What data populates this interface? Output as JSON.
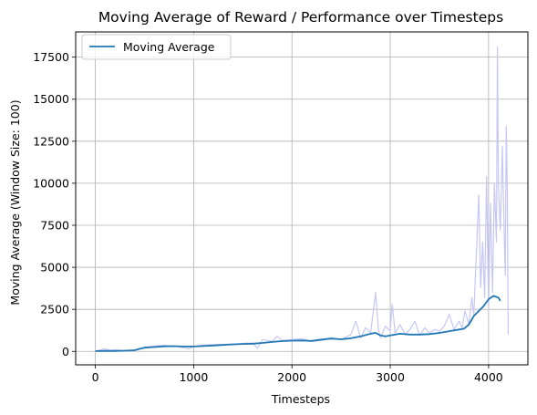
{
  "chart_data": {
    "type": "line",
    "title": "Moving Average of Reward / Performance over Timesteps",
    "xlabel": "Timesteps",
    "ylabel": "Moving Average (Window Size: 100)",
    "xlim": [
      -200,
      4400
    ],
    "ylim": [
      -800,
      19000
    ],
    "x_ticks": [
      0,
      1000,
      2000,
      3000,
      4000
    ],
    "y_ticks": [
      0,
      2500,
      5000,
      7500,
      10000,
      12500,
      15000,
      17500
    ],
    "grid": true,
    "legend_position": "top-left",
    "series": [
      {
        "name": "Moving Average",
        "color": "#1f77b4",
        "x": [
          0,
          100,
          200,
          300,
          400,
          450,
          500,
          600,
          700,
          800,
          900,
          1000,
          1100,
          1200,
          1300,
          1400,
          1500,
          1600,
          1700,
          1800,
          1900,
          2000,
          2100,
          2200,
          2300,
          2400,
          2500,
          2600,
          2700,
          2800,
          2850,
          2900,
          2950,
          3000,
          3100,
          3200,
          3300,
          3400,
          3500,
          3600,
          3700,
          3750,
          3800,
          3850,
          3900,
          3950,
          4000,
          4050,
          4100,
          4120
        ],
        "y": [
          20,
          30,
          25,
          40,
          70,
          150,
          220,
          260,
          300,
          310,
          290,
          290,
          320,
          350,
          380,
          420,
          440,
          460,
          500,
          560,
          610,
          640,
          650,
          620,
          700,
          760,
          720,
          780,
          900,
          1050,
          1100,
          950,
          900,
          950,
          1050,
          1000,
          1000,
          1030,
          1100,
          1200,
          1300,
          1350,
          1600,
          2100,
          2400,
          2700,
          3100,
          3300,
          3200,
          3000
        ]
      },
      {
        "name": "",
        "color": "#c7c7f7",
        "x": [
          0,
          100,
          150,
          200,
          300,
          400,
          500,
          600,
          700,
          800,
          900,
          950,
          1000,
          1100,
          1200,
          1300,
          1400,
          1500,
          1600,
          1650,
          1700,
          1800,
          1850,
          1900,
          2000,
          2100,
          2200,
          2300,
          2400,
          2500,
          2600,
          2650,
          2700,
          2750,
          2800,
          2850,
          2880,
          2900,
          2950,
          3000,
          3020,
          3050,
          3100,
          3150,
          3200,
          3250,
          3300,
          3350,
          3400,
          3450,
          3500,
          3550,
          3600,
          3650,
          3700,
          3730,
          3760,
          3800,
          3830,
          3850,
          3870,
          3900,
          3920,
          3940,
          3960,
          3980,
          4000,
          4020,
          4040,
          4060,
          4080,
          4090,
          4100,
          4120,
          4140,
          4150,
          4170,
          4180,
          4190,
          4200
        ],
        "y": [
          10,
          150,
          60,
          100,
          30,
          60,
          250,
          320,
          360,
          300,
          220,
          150,
          300,
          380,
          400,
          420,
          380,
          480,
          500,
          180,
          700,
          600,
          900,
          650,
          700,
          750,
          600,
          650,
          800,
          700,
          1000,
          1800,
          800,
          1400,
          1100,
          3500,
          1300,
          800,
          1500,
          1200,
          2800,
          1100,
          1600,
          1000,
          1300,
          1800,
          950,
          1400,
          1100,
          1300,
          1200,
          1500,
          2200,
          1300,
          1800,
          1400,
          2400,
          1600,
          3200,
          2200,
          5000,
          9300,
          3800,
          6500,
          3200,
          10400,
          2500,
          8800,
          3500,
          10000,
          6500,
          18100,
          9800,
          7200,
          12200,
          9400,
          4500,
          13400,
          9600,
          1000
        ]
      }
    ]
  }
}
